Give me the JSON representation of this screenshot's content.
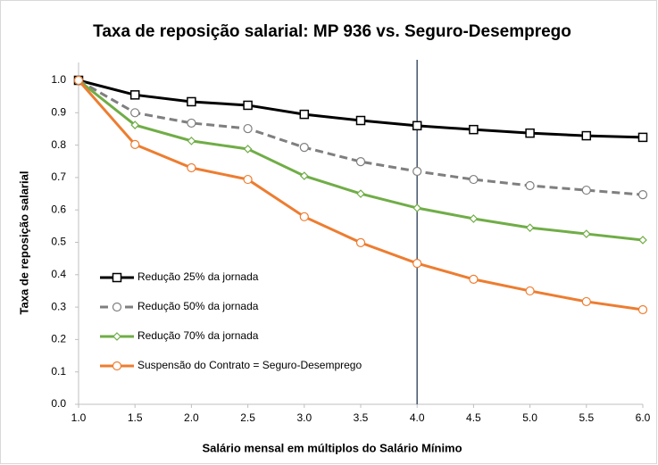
{
  "chart_data": {
    "type": "line",
    "title": "Taxa de reposição salarial: MP 936 vs. Seguro-Desemprego",
    "x_label": "Salário mensal em múltiplos do Salário Mínimo",
    "y_label": "Taxa de reposição salarial",
    "x": [
      1,
      1.5,
      2,
      2.5,
      3,
      3.5,
      4,
      4.5,
      5,
      5.5,
      6
    ],
    "xlim": [
      1,
      6
    ],
    "xticks": [
      {
        "value": 1,
        "label": "1.0"
      },
      1.5,
      {
        "value": 2,
        "label": "2.0"
      },
      2.5,
      {
        "value": 3,
        "label": "3.0"
      },
      3.5,
      {
        "value": 4,
        "label": "4.0"
      },
      4.5,
      {
        "value": 5,
        "label": "5.0"
      },
      5.5,
      {
        "value": 6,
        "label": "6.0"
      }
    ],
    "ylim": [
      0,
      1
    ],
    "yticks": [
      {
        "value": 0,
        "label": "0.0"
      },
      0.1,
      0.2,
      0.3,
      0.4,
      0.5,
      0.6,
      0.7,
      0.8,
      0.9,
      {
        "value": 1,
        "label": "1.0"
      }
    ],
    "grid": false,
    "legend": "lower left",
    "reference_line": {
      "x": 4,
      "color": "#44546a"
    },
    "series": [
      {
        "name": "Redução 25% da jornada",
        "color": "#000000",
        "marker": "square",
        "dash": false,
        "values": [
          1.0,
          0.955,
          0.934,
          0.923,
          0.895,
          0.876,
          0.86,
          0.848,
          0.837,
          0.829,
          0.824
        ]
      },
      {
        "name": "Redução 50% da jornada",
        "color": "#7f7f7f",
        "marker": "circle",
        "dash": true,
        "values": [
          1.0,
          0.9,
          0.868,
          0.851,
          0.793,
          0.749,
          0.719,
          0.694,
          0.675,
          0.661,
          0.647
        ]
      },
      {
        "name": "Redução 70% da jornada",
        "color": "#70ad47",
        "marker": "diamond",
        "dash": false,
        "values": [
          1.0,
          0.862,
          0.813,
          0.788,
          0.705,
          0.65,
          0.606,
          0.573,
          0.545,
          0.526,
          0.507
        ]
      },
      {
        "name": "Suspensão do Contrato = Seguro-Desemprego",
        "color": "#ed7d31",
        "marker": "circle",
        "dash": false,
        "values": [
          1.0,
          0.802,
          0.73,
          0.694,
          0.579,
          0.499,
          0.435,
          0.386,
          0.35,
          0.317,
          0.292
        ]
      }
    ]
  }
}
